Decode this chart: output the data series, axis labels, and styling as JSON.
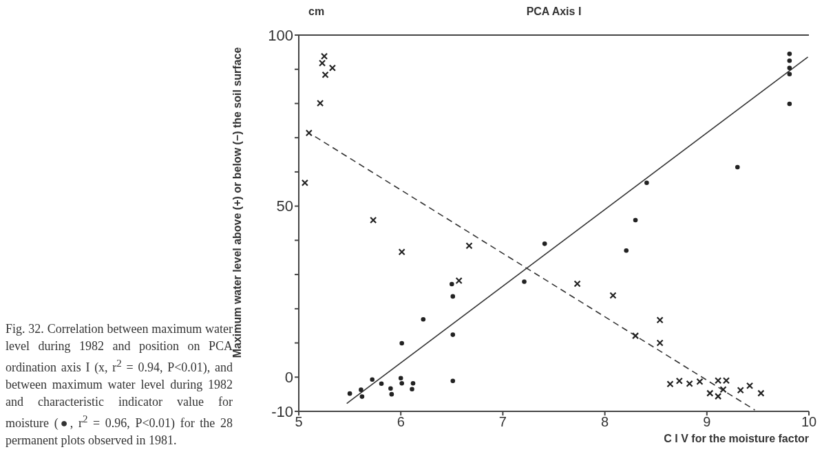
{
  "chart_data": {
    "type": "scatter",
    "x2label": "PCA Axis I",
    "xlabel": "C I V for the moisture factor",
    "ylabel": "Maximum water level above (+) or below (−) the soil surface",
    "annotations": [
      "cm",
      "Fig. 32. Correlation between maximum water level during 1982 and position on PCA ordination axis I (x, r$^{2}$ = 0.94, P<0.01), and between maximum water level during 1982 and characteristic indicator value for moisture (●, r$^{2}$ = 0.96, P<0.01) for the 28 permanent plots observed in 1981."
    ],
    "xlim": [
      5,
      10
    ],
    "xticks": [
      5,
      6,
      7,
      8,
      9,
      10
    ],
    "ylim": [
      -10,
      100
    ],
    "yticks": [
      -10,
      0,
      {
        "value": 10,
        "label": null
      },
      {
        "value": 20,
        "label": null
      },
      {
        "value": 30,
        "label": null
      },
      {
        "value": 40,
        "label": null
      },
      50,
      {
        "value": 60,
        "label": null
      },
      {
        "value": 70,
        "label": null
      },
      {
        "value": 80,
        "label": null
      },
      {
        "value": 90,
        "label": null
      },
      100
    ],
    "series": [
      {
        "marker": "cross",
        "color": "#222222",
        "x": [
          5.25,
          5.23,
          5.33,
          5.26,
          5.21,
          5.1,
          5.06,
          5.73,
          6.01,
          6.67,
          6.57,
          7.73,
          8.08,
          8.54,
          8.3,
          8.54,
          8.64,
          8.73,
          8.83,
          8.93,
          9.03,
          9.11,
          9.19,
          9.11,
          9.16,
          9.33,
          9.42,
          9.53
        ],
        "values": [
          93.8,
          91.8,
          90.4,
          88.4,
          80.1,
          71.4,
          56.8,
          45.9,
          36.6,
          38.4,
          28.2,
          27.3,
          23.9,
          16.7,
          12.1,
          10,
          -2,
          -1.1,
          -1.9,
          -1.3,
          -4.7,
          -1,
          -1,
          -5.6,
          -3.6,
          -3.8,
          -2.5,
          -4.7
        ]
      },
      {
        "marker": "circle",
        "color": "#222222",
        "x": [
          5.5,
          5.61,
          5.62,
          5.72,
          5.81,
          5.9,
          5.91,
          6,
          6.01,
          6.12,
          6.11,
          6.51,
          6.01,
          6.22,
          6.51,
          6.51,
          6.5,
          7.21,
          7.41,
          8.21,
          8.3,
          8.41,
          9.3,
          9.81,
          9.81,
          9.81,
          9.81,
          9.81
        ],
        "values": [
          -4.8,
          -3.7,
          -5.7,
          -0.7,
          -1.9,
          -3.3,
          -5,
          -0.3,
          -1.8,
          -1.8,
          -3.5,
          -1.1,
          9.9,
          16.9,
          12.4,
          23.6,
          27.2,
          27.9,
          39,
          37,
          45.9,
          56.8,
          61.4,
          94.5,
          92.5,
          90.4,
          88.6,
          79.9
        ]
      },
      {
        "type": "line",
        "line_style": "solid",
        "color": "#333333",
        "x": [
          5.47,
          9.99
        ],
        "values": [
          -7.7,
          93.6
        ]
      },
      {
        "type": "line",
        "line_style": "dashed",
        "color": "#333333",
        "x": [
          5.16,
          9.47
        ],
        "values": [
          70.3,
          -9.6
        ]
      }
    ]
  }
}
